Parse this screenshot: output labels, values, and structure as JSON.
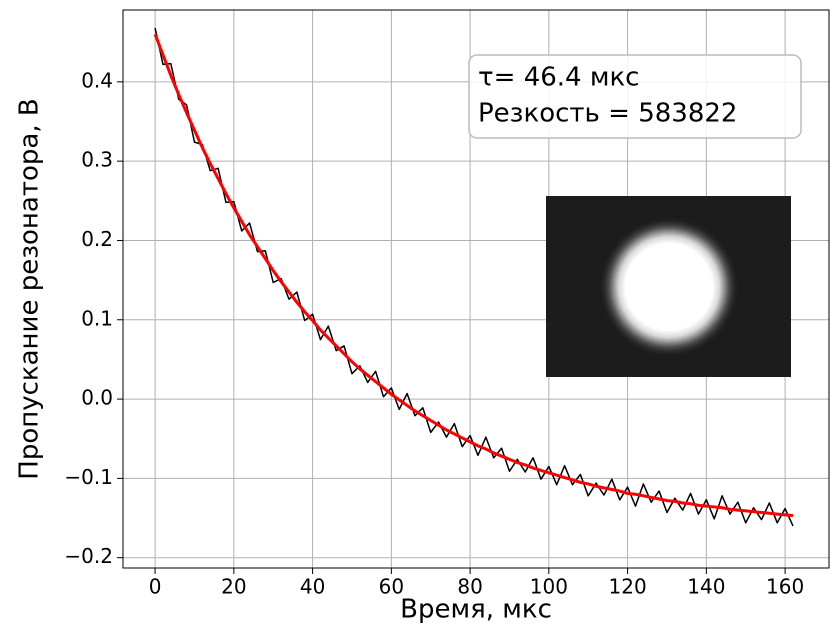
{
  "chart_data": {
    "type": "line",
    "x_label": "Время, мкс",
    "y_label": "Пропускание резонатора, В",
    "annotation": [
      "τ= 46.4 мкс",
      "Резкость = 583822"
    ],
    "x": [
      0,
      2,
      4,
      6,
      8,
      10,
      12,
      14,
      16,
      18,
      20,
      22,
      24,
      26,
      28,
      30,
      32,
      34,
      36,
      38,
      40,
      42,
      44,
      46,
      48,
      50,
      52,
      54,
      56,
      58,
      60,
      62,
      64,
      66,
      68,
      70,
      72,
      74,
      76,
      78,
      80,
      82,
      84,
      86,
      88,
      90,
      92,
      94,
      96,
      98,
      100,
      102,
      104,
      106,
      108,
      110,
      112,
      114,
      116,
      118,
      120,
      122,
      124,
      126,
      128,
      130,
      132,
      134,
      136,
      138,
      140,
      142,
      144,
      146,
      148,
      150,
      152,
      154,
      156,
      158,
      160,
      162
    ],
    "series": [
      {
        "color": "#000000",
        "values": [
          0.468,
          0.422,
          0.423,
          0.378,
          0.371,
          0.324,
          0.321,
          0.288,
          0.291,
          0.248,
          0.249,
          0.212,
          0.222,
          0.186,
          0.187,
          0.147,
          0.152,
          0.126,
          0.135,
          0.099,
          0.107,
          0.075,
          0.092,
          0.061,
          0.067,
          0.032,
          0.042,
          0.021,
          0.035,
          0.003,
          0.014,
          -0.013,
          0.007,
          -0.021,
          -0.011,
          -0.042,
          -0.029,
          -0.048,
          -0.031,
          -0.06,
          -0.046,
          -0.071,
          -0.048,
          -0.074,
          -0.062,
          -0.091,
          -0.076,
          -0.092,
          -0.074,
          -0.101,
          -0.085,
          -0.108,
          -0.084,
          -0.108,
          -0.095,
          -0.122,
          -0.106,
          -0.121,
          -0.101,
          -0.127,
          -0.111,
          -0.135,
          -0.107,
          -0.13,
          -0.116,
          -0.143,
          -0.125,
          -0.14,
          -0.119,
          -0.145,
          -0.127,
          -0.151,
          -0.122,
          -0.145,
          -0.13,
          -0.156,
          -0.137,
          -0.152,
          -0.131,
          -0.156,
          -0.138,
          -0.16
        ]
      },
      {
        "color": "#ff0000",
        "values": [
          0.46,
          0.434,
          0.408,
          0.384,
          0.361,
          0.339,
          0.317,
          0.297,
          0.278,
          0.259,
          0.241,
          0.224,
          0.207,
          0.192,
          0.177,
          0.162,
          0.148,
          0.135,
          0.122,
          0.11,
          0.099,
          0.087,
          0.077,
          0.067,
          0.057,
          0.047,
          0.038,
          0.03,
          0.022,
          0.014,
          0.006,
          -0.001,
          -0.008,
          -0.015,
          -0.021,
          -0.027,
          -0.033,
          -0.039,
          -0.044,
          -0.049,
          -0.054,
          -0.059,
          -0.063,
          -0.068,
          -0.072,
          -0.076,
          -0.08,
          -0.083,
          -0.087,
          -0.09,
          -0.093,
          -0.096,
          -0.099,
          -0.102,
          -0.105,
          -0.107,
          -0.11,
          -0.112,
          -0.114,
          -0.116,
          -0.119,
          -0.12,
          -0.122,
          -0.124,
          -0.126,
          -0.128,
          -0.129,
          -0.131,
          -0.132,
          -0.134,
          -0.135,
          -0.136,
          -0.137,
          -0.139,
          -0.14,
          -0.141,
          -0.142,
          -0.143,
          -0.144,
          -0.145,
          -0.146,
          -0.147
        ]
      }
    ],
    "xlim": [
      -8.15,
      171.15
    ],
    "ylim": [
      -0.213,
      0.4906
    ],
    "xticks": [
      0,
      20,
      40,
      60,
      80,
      100,
      120,
      140,
      160
    ],
    "yticks": [
      {
        "value": -0.2,
        "label": "−0.2"
      },
      {
        "value": -0.1,
        "label": "−0.1"
      },
      {
        "value": 0,
        "label": "0.0"
      },
      0.1,
      0.2,
      0.3,
      0.4
    ],
    "grid": true
  }
}
